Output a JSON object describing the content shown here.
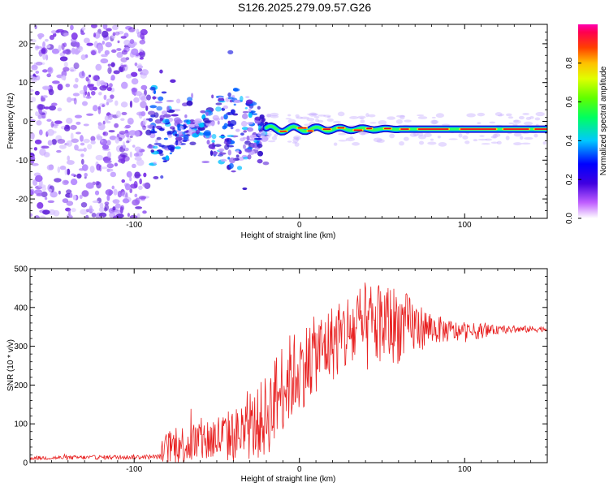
{
  "title": "S126.2025.279.09.57.G26",
  "chart_data": [
    {
      "type": "heatmap",
      "name": "spectrogram",
      "xlabel": "Height of straight line (km)",
      "ylabel": "Frequency (Hz)",
      "xlim": [
        -163,
        150
      ],
      "ylim": [
        -25,
        25
      ],
      "xticks": [
        -100,
        0,
        100
      ],
      "yticks": [
        -20,
        -10,
        0,
        10,
        20
      ],
      "colorbar": {
        "label": "Normalized spectral amplitude",
        "range": [
          0,
          1
        ],
        "ticks": [
          "0.0",
          "0.2",
          "0.4",
          "0.6",
          "0.8"
        ],
        "tick_values": [
          0,
          0.2,
          0.4,
          0.6,
          0.8
        ],
        "colors": [
          "#ffffff",
          "#b040ff",
          "#4000e0",
          "#0000ff",
          "#00c0ff",
          "#00ff80",
          "#40ff00",
          "#c0ff00",
          "#ffff00",
          "#ff8000",
          "#ff0040",
          "#ff00a0"
        ]
      },
      "features": {
        "noise_region_x": [
          -163,
          -92
        ],
        "dispersed_region_x": [
          -92,
          -20
        ],
        "tone_region_x": [
          -20,
          150
        ],
        "tone_frequency_hz": -2
      }
    },
    {
      "type": "line",
      "name": "snr",
      "xlabel": "Height of straight line (km)",
      "ylabel": "SNR (10 * v/v)",
      "xlim": [
        -163,
        150
      ],
      "ylim": [
        0,
        500
      ],
      "xticks": [
        -100,
        0,
        100
      ],
      "yticks": [
        0,
        100,
        200,
        300,
        400,
        500
      ],
      "color": "#e82020",
      "envelope": {
        "x": [
          -163,
          -85,
          -80,
          -60,
          -40,
          -30,
          -20,
          -10,
          0,
          10,
          20,
          30,
          40,
          50,
          60,
          70,
          80,
          90,
          100,
          110,
          120,
          150
        ],
        "mean": [
          12,
          15,
          40,
          55,
          70,
          85,
          120,
          200,
          240,
          280,
          310,
          335,
          345,
          360,
          355,
          350,
          345,
          340,
          335,
          340,
          342,
          345
        ],
        "amp": [
          5,
          6,
          45,
          60,
          70,
          80,
          110,
          120,
          110,
          100,
          100,
          110,
          120,
          110,
          100,
          70,
          40,
          30,
          25,
          20,
          10,
          8
        ]
      }
    }
  ]
}
